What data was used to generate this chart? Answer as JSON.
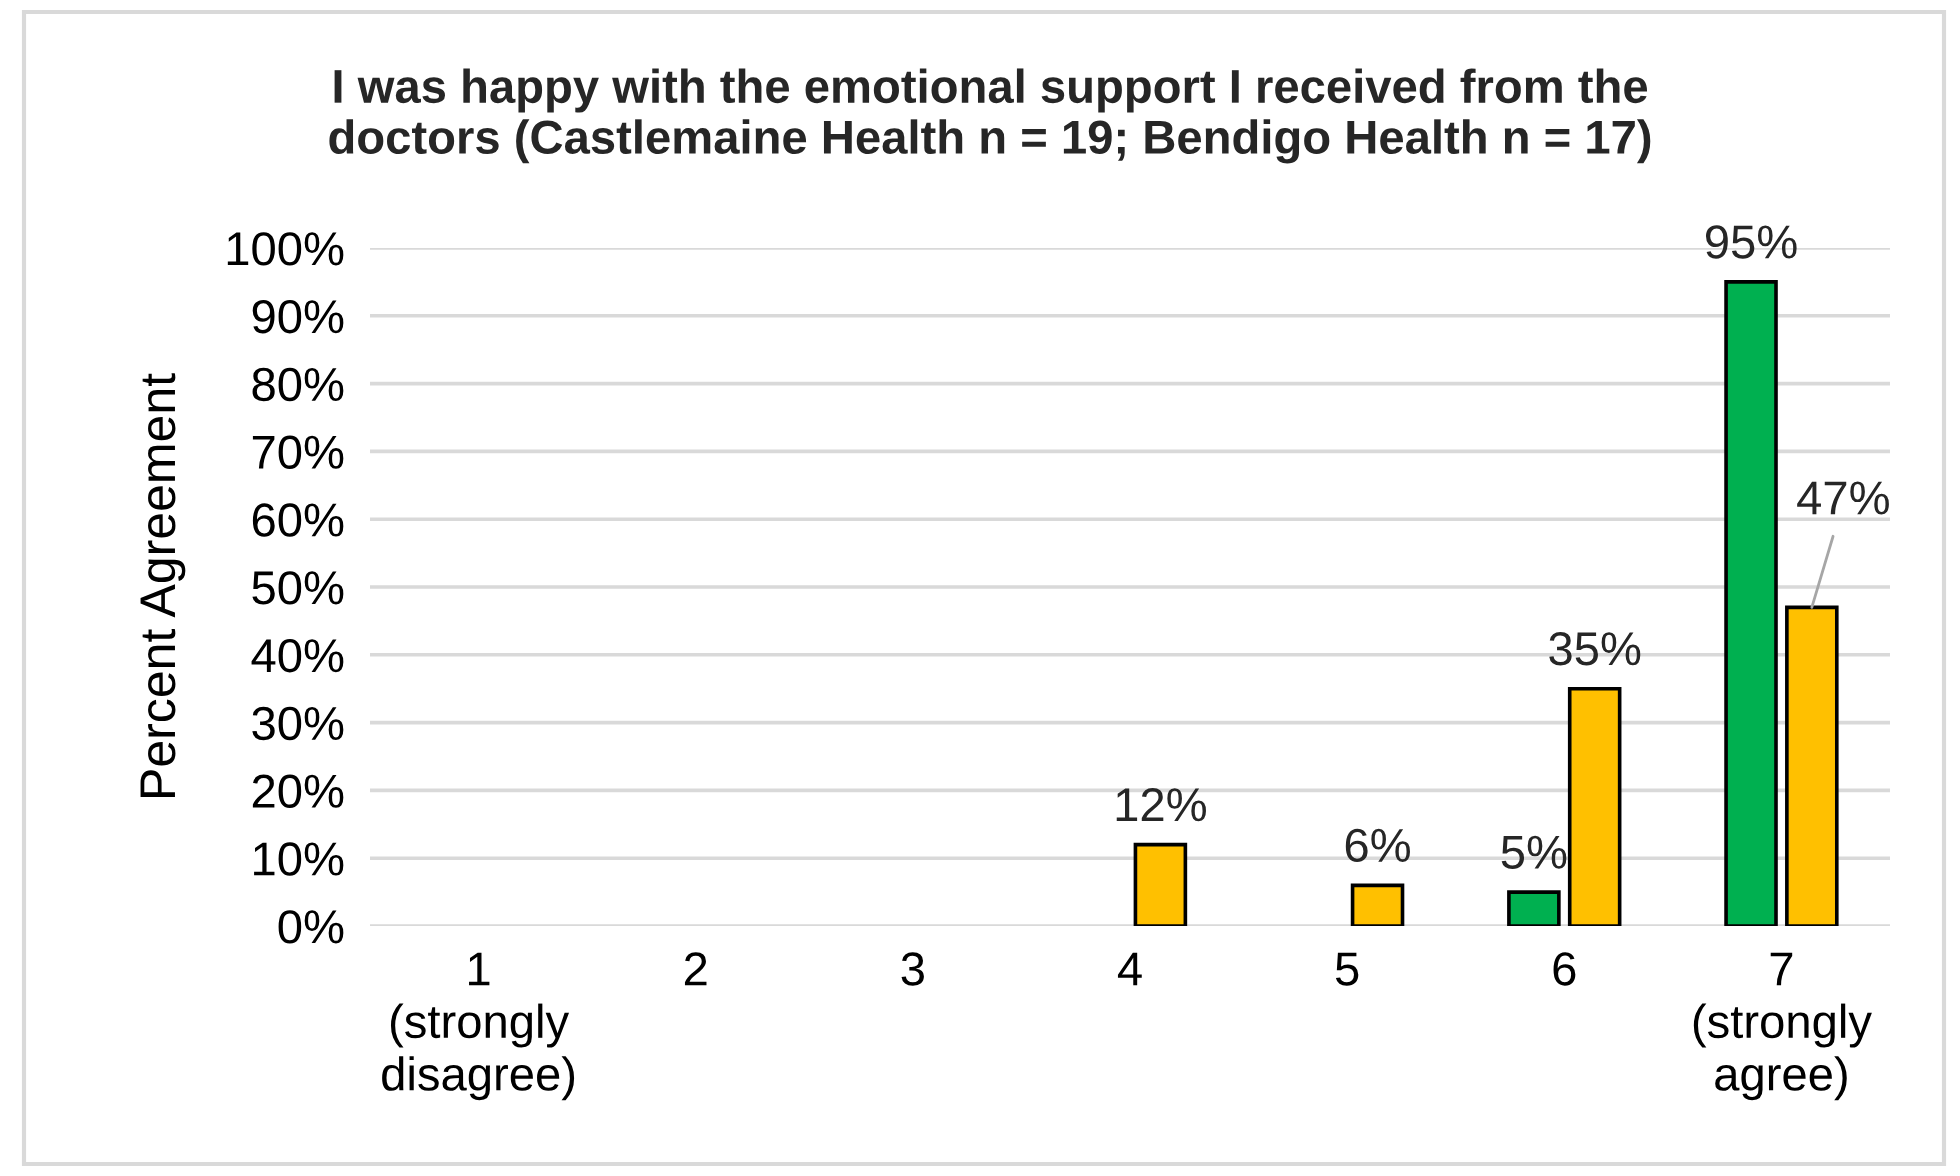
{
  "chart_data": {
    "type": "bar",
    "title": "I was happy with the emotional support I received from the\ndoctors (Castlemaine Health n = 19; Bendigo Health n = 17)",
    "ylabel": "Percent Agreement",
    "categories": [
      "1\n(strongly\ndisagree)",
      "2",
      "3",
      "4",
      "5",
      "6",
      "7\n(strongly\nagree)"
    ],
    "series": [
      {
        "color": "#00b050",
        "values": [
          0,
          0,
          0,
          0,
          0,
          5,
          95
        ],
        "value_labels": [
          null,
          null,
          null,
          null,
          null,
          "5%",
          "95%"
        ]
      },
      {
        "color": "#ffc000",
        "values": [
          0,
          0,
          0,
          12,
          6,
          35,
          47
        ],
        "value_labels": [
          null,
          null,
          null,
          "12%",
          "6%",
          "35%",
          "47%"
        ]
      }
    ],
    "ylim": [
      0,
      100
    ],
    "yticks": [
      {
        "value": 0,
        "label": "0%"
      },
      {
        "value": 10,
        "label": "10%"
      },
      {
        "value": 20,
        "label": "20%"
      },
      {
        "value": 30,
        "label": "30%"
      },
      {
        "value": 40,
        "label": "40%"
      },
      {
        "value": 50,
        "label": "50%"
      },
      {
        "value": 60,
        "label": "60%"
      },
      {
        "value": 70,
        "label": "70%"
      },
      {
        "value": 80,
        "label": "80%"
      },
      {
        "value": 90,
        "label": "90%"
      },
      {
        "value": 100,
        "label": "100%"
      }
    ],
    "grid": "y"
  }
}
